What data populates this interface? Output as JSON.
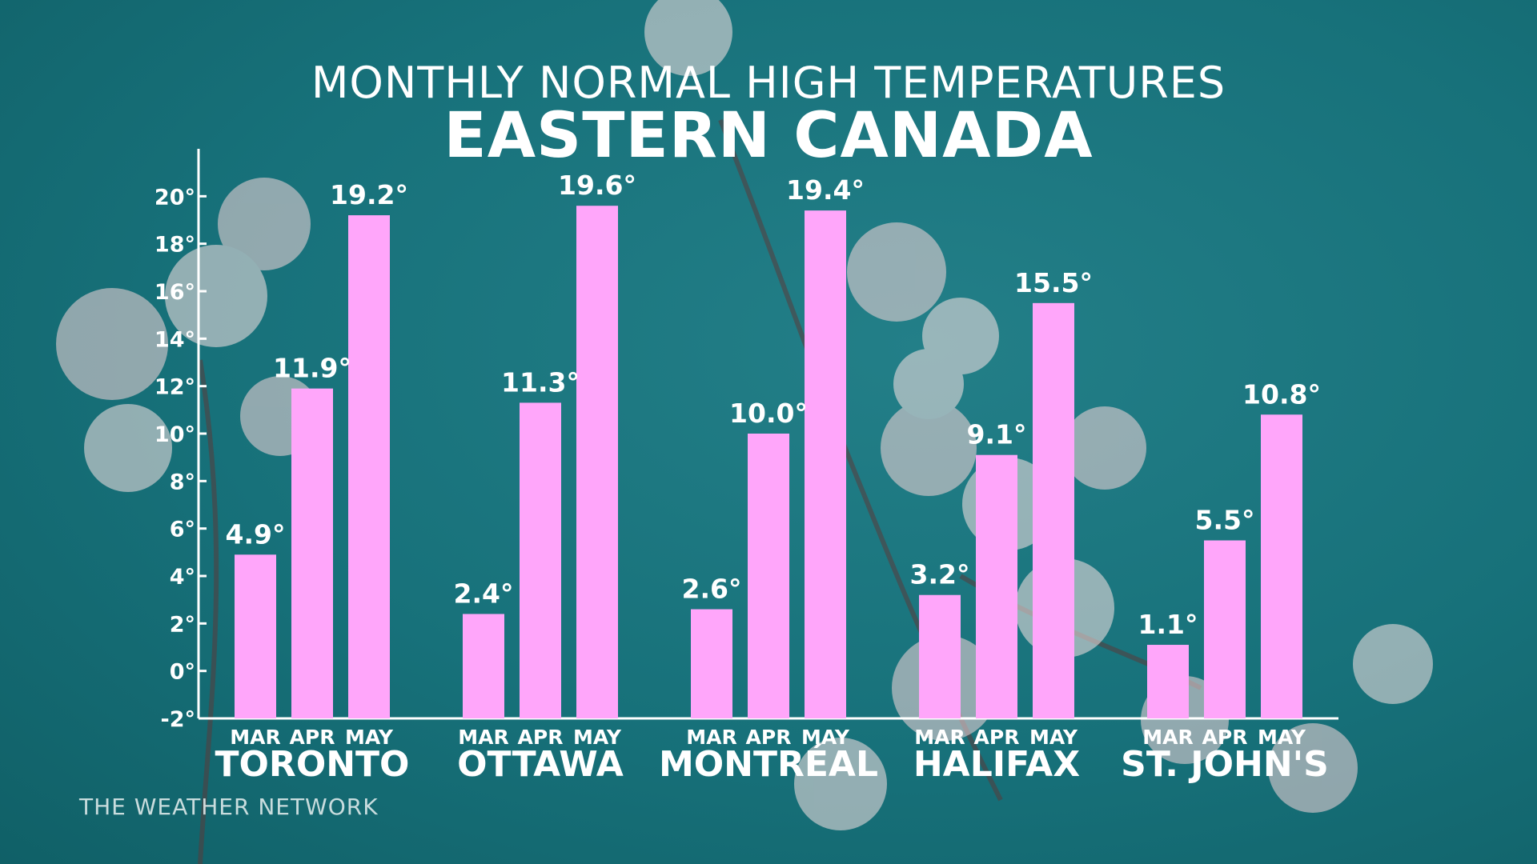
{
  "header": {
    "subtitle": "MONTHLY NORMAL HIGH TEMPERATURES",
    "title": "EASTERN CANADA"
  },
  "branding": {
    "text": "THE WEATHER NETWORK"
  },
  "colors": {
    "bar": "#ffa6fa",
    "text": "#ffffff",
    "background": "#17717a"
  },
  "chart_data": {
    "type": "bar",
    "title": "EASTERN CANADA",
    "subtitle": "MONTHLY NORMAL HIGH TEMPERATURES",
    "categories": [
      "TORONTO",
      "OTTAWA",
      "MONTRÉAL",
      "HALIFAX",
      "ST. JOHN'S"
    ],
    "months": [
      "MAR",
      "APR",
      "MAY"
    ],
    "series": [
      {
        "name": "MAR",
        "values": [
          4.9,
          2.4,
          2.6,
          3.2,
          1.1
        ]
      },
      {
        "name": "APR",
        "values": [
          11.9,
          11.3,
          10.0,
          9.1,
          5.5
        ]
      },
      {
        "name": "MAY",
        "values": [
          19.2,
          19.6,
          19.4,
          15.5,
          10.8
        ]
      }
    ],
    "value_labels": [
      [
        "4.9°",
        "11.9°",
        "19.2°"
      ],
      [
        "2.4°",
        "11.3°",
        "19.6°"
      ],
      [
        "2.6°",
        "10.0°",
        "19.4°"
      ],
      [
        "3.2°",
        "9.1°",
        "15.5°"
      ],
      [
        "1.1°",
        "5.5°",
        "10.8°"
      ]
    ],
    "yticks": [
      "-2°",
      "0°",
      "2°",
      "4°",
      "6°",
      "8°",
      "10°",
      "12°",
      "14°",
      "16°",
      "18°",
      "20°"
    ],
    "ylim": [
      -2,
      22
    ],
    "grid": false,
    "legend": "none"
  }
}
